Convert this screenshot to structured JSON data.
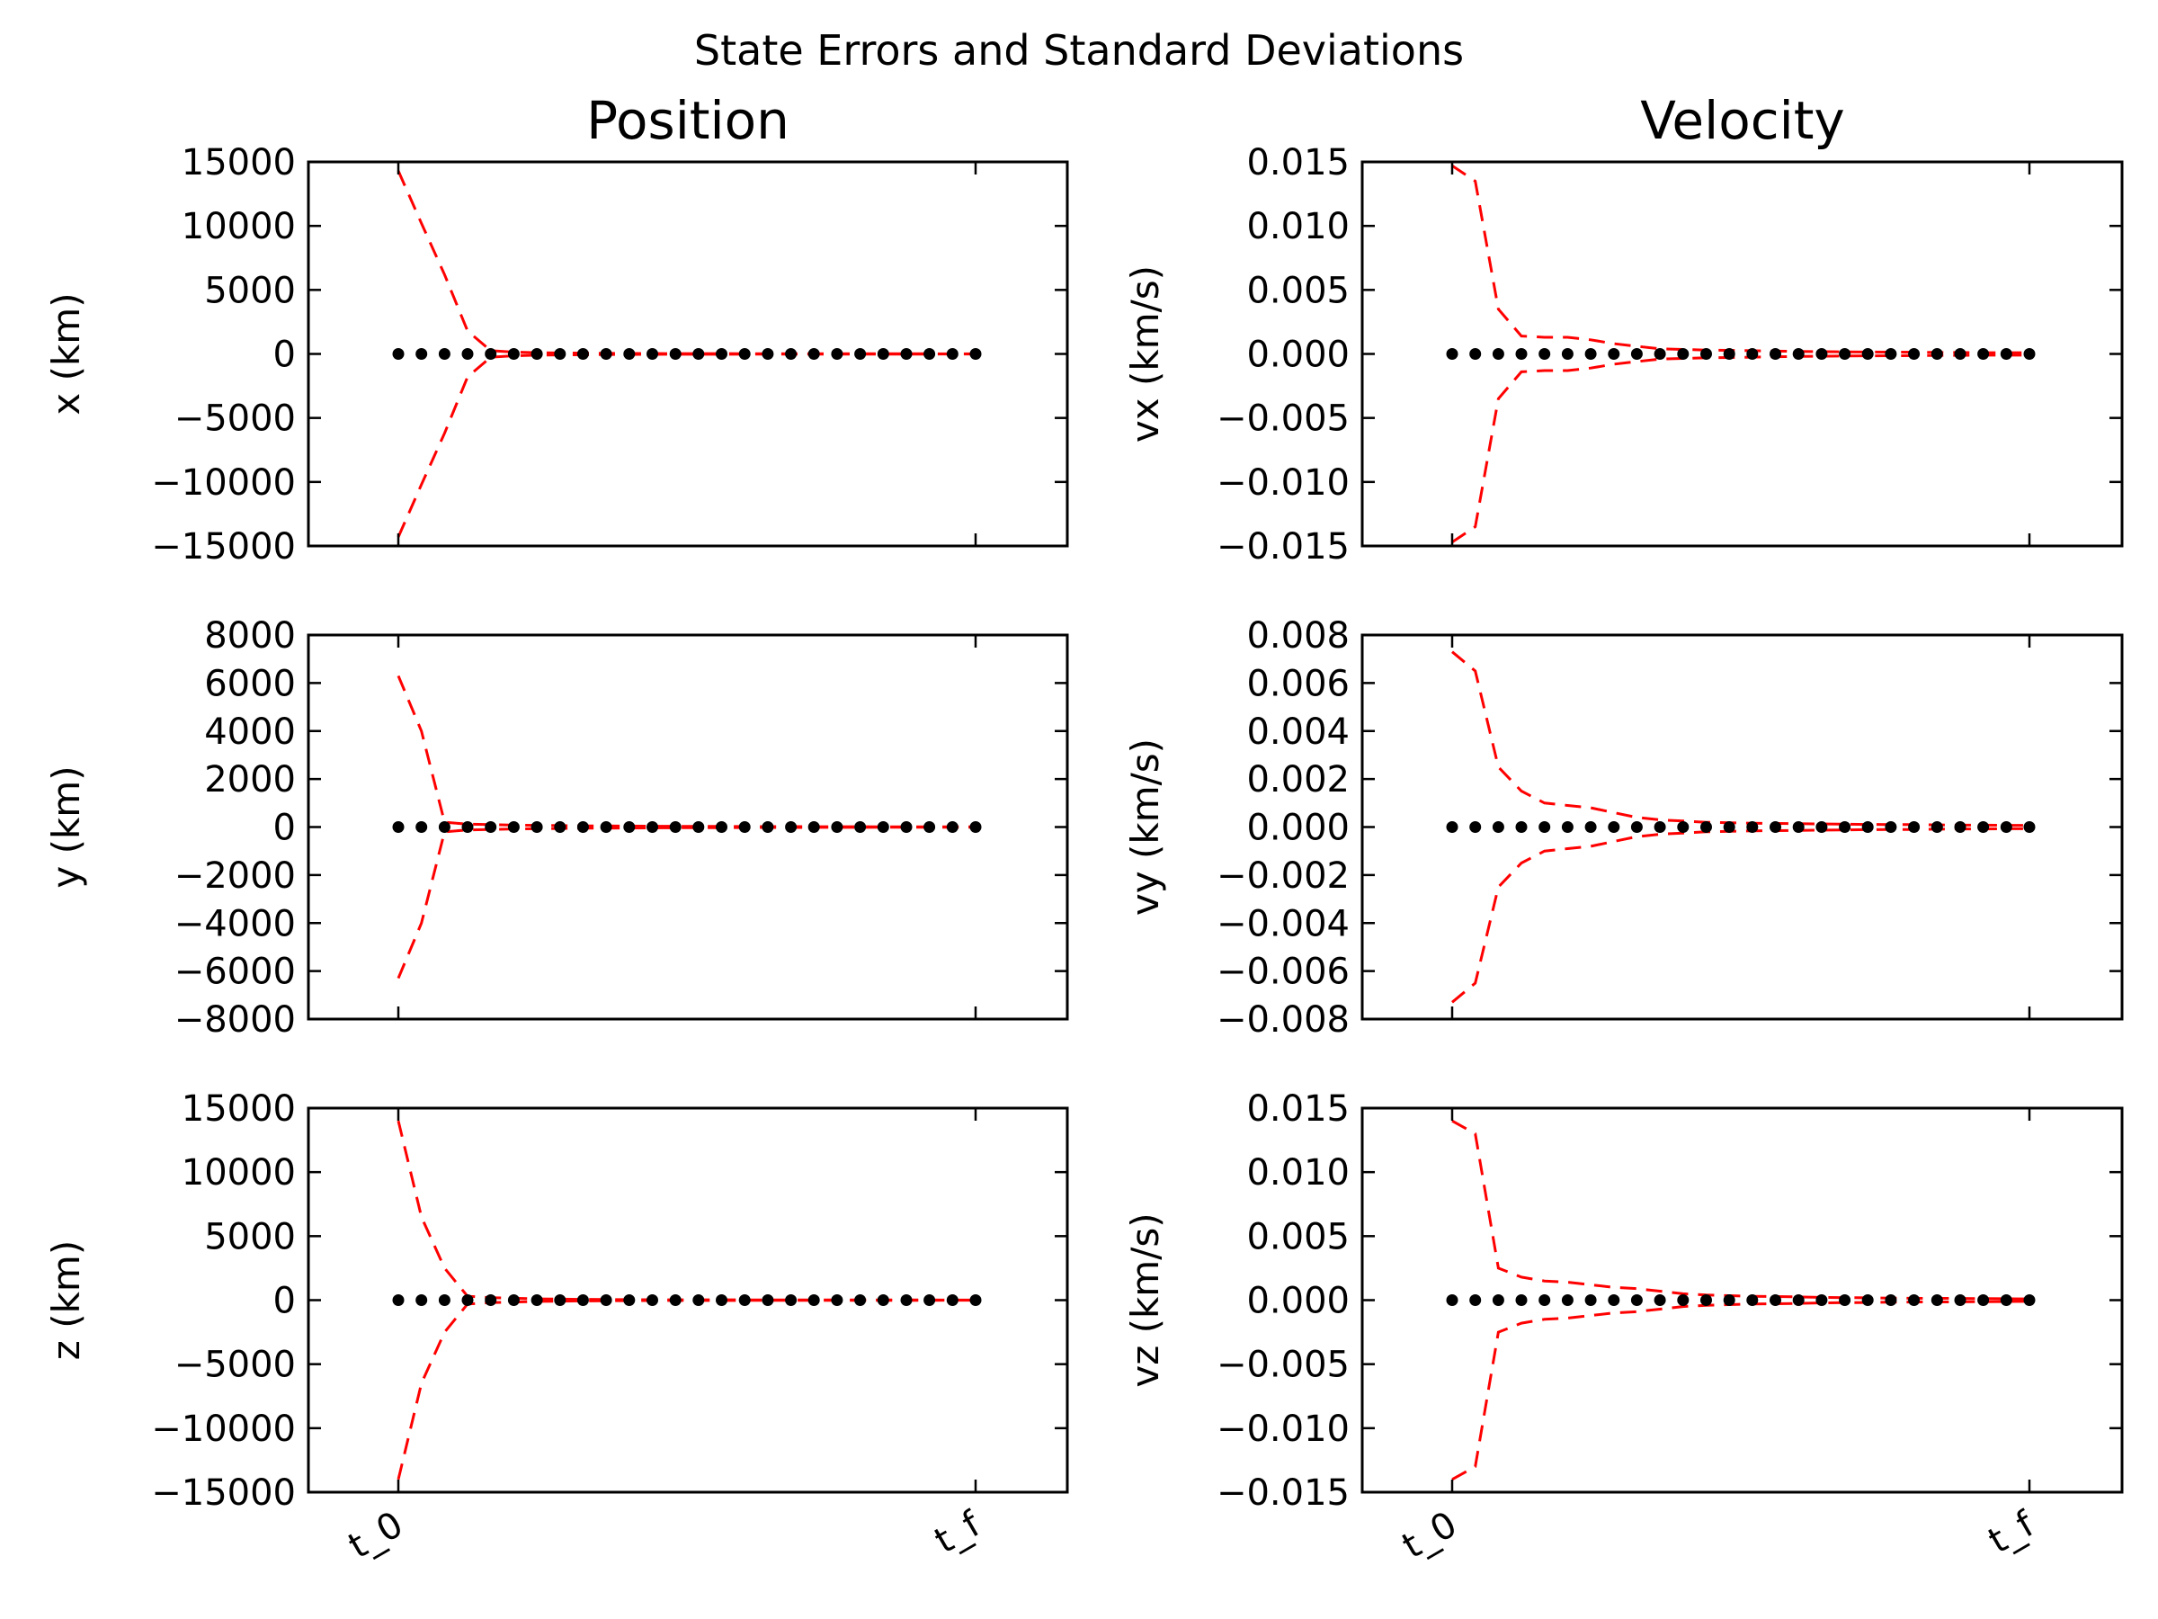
{
  "chart_data": {
    "type": "line",
    "title": "State Errors and Standard Deviations",
    "columns": [
      "Position",
      "Velocity"
    ],
    "colors": {
      "sigma": "#ff0000",
      "error": "#000000"
    },
    "x_ticks": [
      "t_0",
      "t_f"
    ],
    "x_points": 26,
    "subplots": [
      {
        "id": "x",
        "ylabel": "x (km)",
        "ylim": [
          -15000,
          15000
        ],
        "yticks": [
          "15000",
          "10000",
          "5000",
          "0",
          "−5000",
          "−10000",
          "−15000"
        ],
        "ytick_values": [
          15000,
          10000,
          5000,
          0,
          -5000,
          -10000,
          -15000
        ],
        "sigma": [
          14300,
          10200,
          6200,
          1800,
          250,
          150,
          100,
          80,
          60,
          50,
          40,
          35,
          30,
          28,
          25,
          22,
          20,
          18,
          16,
          15,
          14,
          13,
          12,
          11,
          10,
          10
        ],
        "error": [
          0,
          0,
          0,
          0,
          0,
          0,
          0,
          0,
          0,
          0,
          0,
          0,
          0,
          0,
          0,
          0,
          0,
          0,
          0,
          0,
          0,
          0,
          0,
          0,
          0,
          0
        ]
      },
      {
        "id": "vx",
        "ylabel": "vx (km/s)",
        "ylim": [
          -0.015,
          0.015
        ],
        "yticks": [
          "0.015",
          "0.010",
          "0.005",
          "0.000",
          "−0.005",
          "−0.010",
          "−0.015"
        ],
        "ytick_values": [
          0.015,
          0.01,
          0.005,
          0.0,
          -0.005,
          -0.01,
          -0.015
        ],
        "sigma": [
          0.0147,
          0.0135,
          0.0035,
          0.0014,
          0.0013,
          0.0013,
          0.0011,
          0.0008,
          0.0006,
          0.0004,
          0.00035,
          0.0003,
          0.00028,
          0.00025,
          0.00022,
          0.0002,
          0.00018,
          0.00016,
          0.00015,
          0.00014,
          0.00013,
          0.00012,
          0.00011,
          0.0001,
          0.0001,
          0.0001
        ],
        "error": [
          0,
          0,
          0,
          0,
          0,
          0,
          0,
          0,
          0,
          0,
          0,
          0,
          0,
          0,
          0,
          0,
          0,
          0,
          0,
          0,
          0,
          0,
          0,
          0,
          0,
          0
        ]
      },
      {
        "id": "y",
        "ylabel": "y (km)",
        "ylim": [
          -8000,
          8000
        ],
        "yticks": [
          "8000",
          "6000",
          "4000",
          "2000",
          "0",
          "−2000",
          "−4000",
          "−6000",
          "−8000"
        ],
        "ytick_values": [
          8000,
          6000,
          4000,
          2000,
          0,
          -2000,
          -4000,
          -6000,
          -8000
        ],
        "sigma": [
          6300,
          4000,
          200,
          120,
          100,
          80,
          70,
          60,
          50,
          45,
          40,
          35,
          30,
          28,
          25,
          22,
          20,
          18,
          16,
          15,
          14,
          13,
          12,
          11,
          10,
          10
        ],
        "error": [
          0,
          0,
          0,
          0,
          0,
          0,
          0,
          0,
          0,
          0,
          0,
          0,
          0,
          0,
          0,
          0,
          0,
          0,
          0,
          0,
          0,
          0,
          0,
          0,
          0,
          0
        ]
      },
      {
        "id": "vy",
        "ylabel": "vy (km/s)",
        "ylim": [
          -0.008,
          0.008
        ],
        "yticks": [
          "0.008",
          "0.006",
          "0.004",
          "0.002",
          "0.000",
          "−0.002",
          "−0.004",
          "−0.006",
          "−0.008"
        ],
        "ytick_values": [
          0.008,
          0.006,
          0.004,
          0.002,
          0.0,
          -0.002,
          -0.004,
          -0.006,
          -0.008
        ],
        "sigma": [
          0.0073,
          0.0065,
          0.0025,
          0.0015,
          0.001,
          0.0009,
          0.0008,
          0.0006,
          0.0004,
          0.0003,
          0.00025,
          0.0002,
          0.00018,
          0.00016,
          0.00015,
          0.00014,
          0.00013,
          0.00012,
          0.00011,
          0.0001,
          0.0001,
          9e-05,
          8e-05,
          8e-05,
          7e-05,
          7e-05
        ],
        "error": [
          0,
          0,
          0,
          0,
          0,
          0,
          0,
          0,
          0,
          0,
          0,
          0,
          0,
          0,
          0,
          0,
          0,
          0,
          0,
          0,
          0,
          0,
          0,
          0,
          0,
          0
        ]
      },
      {
        "id": "z",
        "ylabel": "z (km)",
        "ylim": [
          -15000,
          15000
        ],
        "yticks": [
          "15000",
          "10000",
          "5000",
          "0",
          "−5000",
          "−10000",
          "−15000"
        ],
        "ytick_values": [
          15000,
          10000,
          5000,
          0,
          -5000,
          -10000,
          -15000
        ],
        "sigma": [
          14000,
          6500,
          2500,
          300,
          200,
          150,
          100,
          80,
          60,
          50,
          40,
          35,
          30,
          28,
          25,
          22,
          20,
          18,
          16,
          15,
          14,
          13,
          12,
          11,
          10,
          10
        ],
        "error": [
          0,
          0,
          0,
          0,
          0,
          0,
          0,
          0,
          0,
          0,
          0,
          0,
          0,
          0,
          0,
          0,
          0,
          0,
          0,
          0,
          0,
          0,
          0,
          0,
          0,
          0
        ]
      },
      {
        "id": "vz",
        "ylabel": "vz (km/s)",
        "ylim": [
          -0.015,
          0.015
        ],
        "yticks": [
          "0.015",
          "0.010",
          "0.005",
          "0.000",
          "−0.005",
          "−0.010",
          "−0.015"
        ],
        "ytick_values": [
          0.015,
          0.01,
          0.005,
          0.0,
          -0.005,
          -0.01,
          -0.015
        ],
        "sigma": [
          0.014,
          0.013,
          0.0025,
          0.0018,
          0.0015,
          0.0014,
          0.0012,
          0.001,
          0.0009,
          0.0007,
          0.0005,
          0.0004,
          0.00035,
          0.0003,
          0.00028,
          0.00025,
          0.00022,
          0.0002,
          0.00018,
          0.00016,
          0.00015,
          0.00014,
          0.00013,
          0.00012,
          0.00011,
          0.0001
        ],
        "error": [
          0,
          0,
          0,
          0,
          0,
          0,
          0,
          0,
          0,
          0,
          0,
          0,
          0,
          0,
          0,
          0,
          0,
          0,
          0,
          0,
          0,
          0,
          0,
          0,
          0,
          0
        ]
      }
    ]
  }
}
